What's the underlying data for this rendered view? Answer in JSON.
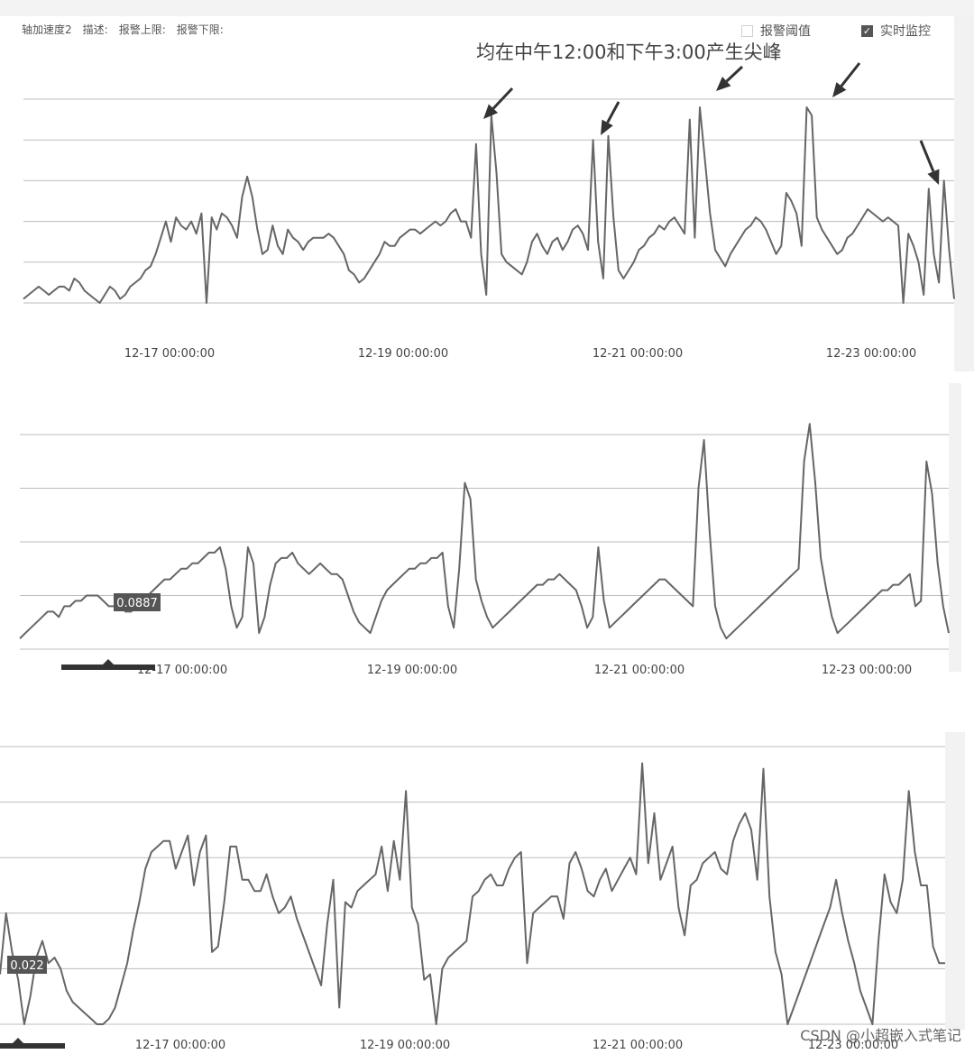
{
  "toolbar": {
    "items": [
      "轴加速度2",
      "描述:",
      "报警上限:",
      "报警下限:"
    ],
    "threshold_label": "报警阈值",
    "threshold_checked": false,
    "realtime_label": "实时监控",
    "realtime_checked": true
  },
  "annotation": "均在中午12:00和下午3:00产生尖峰",
  "watermark": "CSDN @小超嵌入式笔记",
  "colors": {
    "line": "#666666",
    "grid": "#bdbdbd",
    "axis_text": "#444444",
    "tooltip_bg": "#555555",
    "arrow": "#333333"
  },
  "chart_data": [
    {
      "type": "line",
      "title": "",
      "x_ticks": [
        "12-17 00:00:00",
        "12-19 00:00:00",
        "12-21 00:00:00",
        "12-23 00:00:00"
      ],
      "gridlines": 6,
      "y_range": [
        0,
        5
      ],
      "series": [
        {
          "values": [
            0.1,
            0.2,
            0.3,
            0.4,
            0.3,
            0.2,
            0.3,
            0.4,
            0.4,
            0.3,
            0.6,
            0.5,
            0.3,
            0.2,
            0.1,
            0.0,
            0.2,
            0.4,
            0.3,
            0.1,
            0.2,
            0.4,
            0.5,
            0.6,
            0.8,
            0.9,
            1.2,
            1.6,
            2.0,
            1.5,
            2.1,
            1.9,
            1.8,
            2.0,
            1.7,
            2.2,
            0.0,
            2.1,
            1.8,
            2.2,
            2.1,
            1.9,
            1.6,
            2.6,
            3.1,
            2.6,
            1.8,
            1.2,
            1.3,
            1.9,
            1.4,
            1.2,
            1.8,
            1.6,
            1.5,
            1.3,
            1.5,
            1.6,
            1.6,
            1.6,
            1.7,
            1.6,
            1.4,
            1.2,
            0.8,
            0.7,
            0.5,
            0.6,
            0.8,
            1.0,
            1.2,
            1.5,
            1.4,
            1.4,
            1.6,
            1.7,
            1.8,
            1.8,
            1.7,
            1.8,
            1.9,
            2.0,
            1.9,
            2.0,
            2.2,
            2.3,
            2.0,
            2.0,
            1.6,
            3.9,
            1.2,
            0.2,
            4.6,
            3.2,
            1.2,
            1.0,
            0.9,
            0.8,
            0.7,
            1.0,
            1.5,
            1.7,
            1.4,
            1.2,
            1.5,
            1.6,
            1.3,
            1.5,
            1.8,
            1.9,
            1.7,
            1.3,
            4.0,
            1.5,
            0.6,
            4.1,
            2.1,
            0.8,
            0.6,
            0.8,
            1.0,
            1.3,
            1.4,
            1.6,
            1.7,
            1.9,
            1.8,
            2.0,
            2.1,
            1.9,
            1.7,
            4.5,
            1.6,
            4.8,
            3.5,
            2.2,
            1.3,
            1.1,
            0.9,
            1.2,
            1.4,
            1.6,
            1.8,
            1.9,
            2.1,
            2.0,
            1.8,
            1.5,
            1.2,
            1.4,
            2.7,
            2.5,
            2.2,
            1.4,
            4.8,
            4.6,
            2.1,
            1.8,
            1.6,
            1.4,
            1.2,
            1.3,
            1.6,
            1.7,
            1.9,
            2.1,
            2.3,
            2.2,
            2.1,
            2.0,
            2.1,
            2.0,
            1.9,
            0.0,
            1.7,
            1.4,
            1.0,
            0.2,
            2.8,
            1.2,
            0.5,
            3.0,
            1.3,
            0.1
          ]
        }
      ]
    },
    {
      "type": "line",
      "title": "",
      "x_ticks": [
        "12-17 00:00:00",
        "12-19 00:00:00",
        "12-21 00:00:00",
        "12-23 00:00:00"
      ],
      "gridlines": 5,
      "y_range": [
        0,
        4
      ],
      "tooltip_value": "0.0887",
      "series": [
        {
          "values": [
            0.2,
            0.3,
            0.4,
            0.5,
            0.6,
            0.7,
            0.7,
            0.6,
            0.8,
            0.8,
            0.9,
            0.9,
            1.0,
            1.0,
            1.0,
            0.9,
            0.8,
            0.8,
            0.8,
            0.7,
            0.7,
            0.8,
            0.9,
            1.0,
            1.1,
            1.2,
            1.3,
            1.3,
            1.4,
            1.5,
            1.5,
            1.6,
            1.6,
            1.7,
            1.8,
            1.8,
            1.9,
            1.5,
            0.8,
            0.4,
            0.6,
            1.9,
            1.6,
            0.3,
            0.6,
            1.2,
            1.6,
            1.7,
            1.7,
            1.8,
            1.6,
            1.5,
            1.4,
            1.5,
            1.6,
            1.5,
            1.4,
            1.4,
            1.3,
            1.0,
            0.7,
            0.5,
            0.4,
            0.3,
            0.6,
            0.9,
            1.1,
            1.2,
            1.3,
            1.4,
            1.5,
            1.5,
            1.6,
            1.6,
            1.7,
            1.7,
            1.8,
            0.8,
            0.4,
            1.5,
            3.1,
            2.8,
            1.3,
            0.9,
            0.6,
            0.4,
            0.5,
            0.6,
            0.7,
            0.8,
            0.9,
            1.0,
            1.1,
            1.2,
            1.2,
            1.3,
            1.3,
            1.4,
            1.3,
            1.2,
            1.1,
            0.8,
            0.4,
            0.6,
            1.9,
            0.9,
            0.4,
            0.5,
            0.6,
            0.7,
            0.8,
            0.9,
            1.0,
            1.1,
            1.2,
            1.3,
            1.3,
            1.2,
            1.1,
            1.0,
            0.9,
            0.8,
            3.0,
            3.9,
            2.2,
            0.8,
            0.4,
            0.2,
            0.3,
            0.4,
            0.5,
            0.6,
            0.7,
            0.8,
            0.9,
            1.0,
            1.1,
            1.2,
            1.3,
            1.4,
            1.5,
            3.5,
            4.2,
            3.1,
            1.7,
            1.1,
            0.6,
            0.3,
            0.4,
            0.5,
            0.6,
            0.7,
            0.8,
            0.9,
            1.0,
            1.1,
            1.1,
            1.2,
            1.2,
            1.3,
            1.4,
            0.8,
            0.9,
            3.5,
            2.9,
            1.6,
            0.8,
            0.3
          ]
        }
      ]
    },
    {
      "type": "line",
      "title": "",
      "x_ticks": [
        "12-17 00:00:00",
        "12-19 00:00:00",
        "12-21 00:00:00",
        "12-23 00:00:00"
      ],
      "gridlines": 6,
      "y_range": [
        0,
        5
      ],
      "tooltip_value": "0.022",
      "series": [
        {
          "values": [
            0.9,
            2.0,
            1.3,
            0.8,
            0.0,
            0.5,
            1.2,
            1.5,
            1.1,
            1.2,
            1.0,
            0.6,
            0.4,
            0.3,
            0.2,
            0.1,
            0.0,
            0.0,
            0.1,
            0.3,
            0.7,
            1.1,
            1.7,
            2.2,
            2.8,
            3.1,
            3.2,
            3.3,
            3.3,
            2.8,
            3.1,
            3.4,
            2.5,
            3.1,
            3.4,
            1.3,
            1.4,
            2.2,
            3.2,
            3.2,
            2.6,
            2.6,
            2.4,
            2.4,
            2.7,
            2.3,
            2.0,
            2.1,
            2.3,
            1.9,
            1.6,
            1.3,
            1.0,
            0.7,
            1.8,
            2.6,
            0.3,
            2.2,
            2.1,
            2.4,
            2.5,
            2.6,
            2.7,
            3.2,
            2.4,
            3.3,
            2.6,
            4.2,
            2.1,
            1.8,
            0.8,
            0.9,
            0.0,
            1.0,
            1.2,
            1.3,
            1.4,
            1.5,
            2.3,
            2.4,
            2.6,
            2.7,
            2.5,
            2.5,
            2.8,
            3.0,
            3.1,
            1.1,
            2.0,
            2.1,
            2.2,
            2.3,
            2.3,
            1.9,
            2.9,
            3.1,
            2.8,
            2.4,
            2.3,
            2.6,
            2.8,
            2.4,
            2.6,
            2.8,
            3.0,
            2.7,
            4.7,
            2.9,
            3.8,
            2.6,
            2.9,
            3.2,
            2.1,
            1.6,
            2.5,
            2.6,
            2.9,
            3.0,
            3.1,
            2.8,
            2.7,
            3.3,
            3.6,
            3.8,
            3.5,
            2.6,
            4.6,
            2.3,
            1.3,
            0.9,
            0.0,
            0.3,
            0.6,
            0.9,
            1.2,
            1.5,
            1.8,
            2.1,
            2.6,
            2.0,
            1.5,
            1.1,
            0.6,
            0.3,
            0.0,
            1.5,
            2.7,
            2.2,
            2.0,
            2.6,
            4.2,
            3.1,
            2.5,
            2.5,
            1.4,
            1.1,
            1.1
          ]
        }
      ]
    }
  ]
}
